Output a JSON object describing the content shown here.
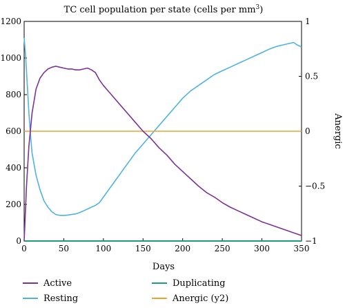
{
  "chart_data": {
    "type": "line",
    "title_main": "TC cell population per state (cells per mm",
    "title_sup": "3",
    "title_end": ")",
    "xlabel": "Days",
    "y2label": "Anergic",
    "xlim": [
      0,
      350
    ],
    "ylim": [
      0,
      1200
    ],
    "y2lim": [
      -1,
      1
    ],
    "xticks": [
      0,
      50,
      100,
      150,
      200,
      250,
      300,
      350
    ],
    "yticks": [
      0,
      200,
      400,
      600,
      800,
      1000,
      1200
    ],
    "y2ticks": [
      -1,
      -0.5,
      0,
      0.5,
      1
    ],
    "y2ticklabels": [
      "−1",
      "−0.5",
      "0",
      "0.5",
      "1"
    ],
    "grid": false,
    "legend_position": "bottom",
    "series": [
      {
        "name": "Active",
        "color": "#7B3294",
        "axis": "y",
        "x": [
          0,
          3,
          6,
          10,
          15,
          20,
          25,
          30,
          35,
          40,
          45,
          50,
          55,
          60,
          65,
          70,
          75,
          80,
          85,
          90,
          95,
          100,
          110,
          120,
          130,
          140,
          150,
          160,
          170,
          180,
          190,
          200,
          210,
          220,
          230,
          240,
          250,
          260,
          270,
          280,
          290,
          300,
          310,
          320,
          330,
          340,
          350
        ],
        "values": [
          0,
          300,
          520,
          700,
          830,
          890,
          920,
          940,
          950,
          955,
          950,
          945,
          940,
          940,
          935,
          935,
          940,
          945,
          935,
          920,
          880,
          850,
          800,
          750,
          700,
          650,
          600,
          560,
          510,
          470,
          420,
          380,
          340,
          300,
          265,
          240,
          210,
          185,
          165,
          145,
          125,
          105,
          90,
          75,
          60,
          45,
          30
        ]
      },
      {
        "name": "Duplicating",
        "color": "#1B9E77",
        "axis": "y",
        "x": [
          0,
          50,
          100,
          150,
          200,
          250,
          300,
          350
        ],
        "values": [
          0,
          0,
          0,
          0,
          0,
          0,
          0,
          0
        ]
      },
      {
        "name": "Resting",
        "color": "#4FB3E0",
        "axis": "y",
        "x": [
          0,
          2,
          4,
          6,
          8,
          10,
          15,
          20,
          25,
          30,
          35,
          40,
          45,
          50,
          55,
          60,
          65,
          70,
          75,
          80,
          85,
          90,
          95,
          100,
          110,
          120,
          130,
          140,
          150,
          160,
          170,
          180,
          190,
          200,
          210,
          220,
          230,
          240,
          250,
          260,
          270,
          280,
          290,
          300,
          310,
          320,
          330,
          340,
          345,
          350
        ],
        "values": [
          1110,
          1000,
          850,
          700,
          580,
          480,
          360,
          280,
          220,
          185,
          160,
          145,
          140,
          140,
          142,
          145,
          148,
          155,
          165,
          175,
          185,
          195,
          210,
          240,
          300,
          360,
          420,
          480,
          530,
          580,
          630,
          680,
          730,
          780,
          820,
          850,
          880,
          910,
          930,
          950,
          970,
          990,
          1010,
          1030,
          1050,
          1065,
          1075,
          1085,
          1070,
          1060
        ]
      },
      {
        "name": "Anergic (y2)",
        "color": "#F0A030",
        "axis": "y2",
        "x": [
          0,
          350
        ],
        "values": [
          0,
          0
        ]
      }
    ]
  }
}
